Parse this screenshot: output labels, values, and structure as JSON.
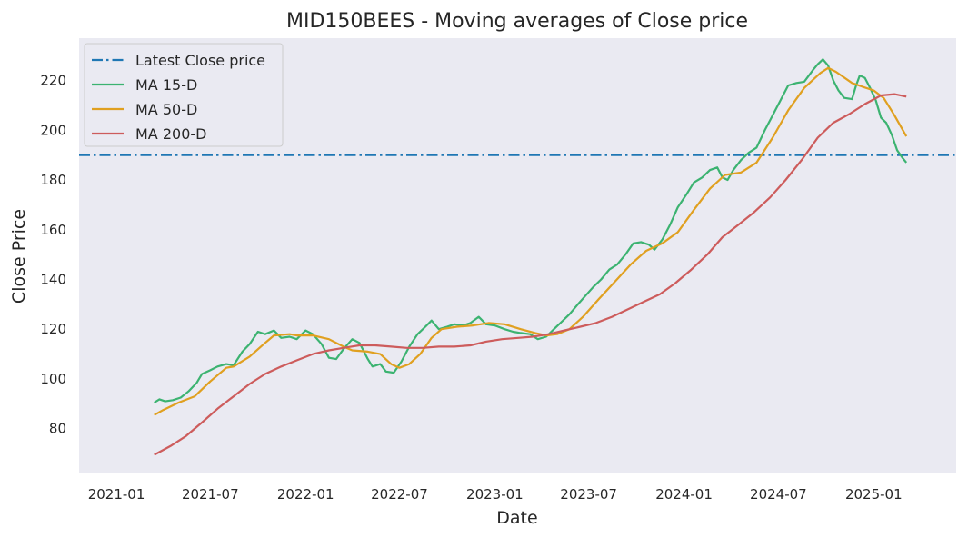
{
  "chart_data": {
    "type": "line",
    "title": "MID150BEES - Moving averages of Close price",
    "xlabel": "Date",
    "ylabel": "Close Price",
    "grid": false,
    "legend_position": "top-left",
    "x_ticks": [
      "2021-01",
      "2021-07",
      "2022-01",
      "2022-07",
      "2023-01",
      "2023-07",
      "2024-01",
      "2024-07",
      "2025-01"
    ],
    "x_range": [
      "2020-10-21",
      "2025-06-09"
    ],
    "y_ticks": [
      80,
      100,
      120,
      140,
      160,
      180,
      200,
      220
    ],
    "ylim": [
      62,
      237
    ],
    "reference_line": {
      "name": "Latest Close price",
      "value": 190,
      "color": "#1f77b4",
      "style": "dashdot"
    },
    "series": [
      {
        "name": "MA 15-D",
        "color": "#3cb371",
        "points": [
          [
            "2021-03-15",
            90.5
          ],
          [
            "2021-03-25",
            91.8
          ],
          [
            "2021-04-05",
            91.0
          ],
          [
            "2021-04-20",
            91.5
          ],
          [
            "2021-05-05",
            92.5
          ],
          [
            "2021-05-20",
            95.0
          ],
          [
            "2021-06-05",
            98.5
          ],
          [
            "2021-06-15",
            102.0
          ],
          [
            "2021-07-01",
            103.5
          ],
          [
            "2021-07-15",
            105.0
          ],
          [
            "2021-08-01",
            106.0
          ],
          [
            "2021-08-15",
            105.5
          ],
          [
            "2021-09-01",
            111.0
          ],
          [
            "2021-09-15",
            114.0
          ],
          [
            "2021-10-01",
            119.0
          ],
          [
            "2021-10-15",
            118.0
          ],
          [
            "2021-11-01",
            119.5
          ],
          [
            "2021-11-15",
            116.5
          ],
          [
            "2021-12-01",
            117.0
          ],
          [
            "2021-12-15",
            116.0
          ],
          [
            "2022-01-01",
            119.5
          ],
          [
            "2022-01-15",
            118.0
          ],
          [
            "2022-02-01",
            114.0
          ],
          [
            "2022-02-15",
            108.5
          ],
          [
            "2022-03-01",
            108.0
          ],
          [
            "2022-03-15",
            112.0
          ],
          [
            "2022-04-01",
            116.0
          ],
          [
            "2022-04-15",
            114.5
          ],
          [
            "2022-05-01",
            108.0
          ],
          [
            "2022-05-10",
            105.0
          ],
          [
            "2022-05-25",
            106.0
          ],
          [
            "2022-06-05",
            103.0
          ],
          [
            "2022-06-20",
            102.5
          ],
          [
            "2022-07-05",
            107.0
          ],
          [
            "2022-07-20",
            113.0
          ],
          [
            "2022-08-05",
            118.0
          ],
          [
            "2022-08-20",
            121.0
          ],
          [
            "2022-09-01",
            123.5
          ],
          [
            "2022-09-15",
            120.0
          ],
          [
            "2022-10-01",
            121.0
          ],
          [
            "2022-10-15",
            122.0
          ],
          [
            "2022-11-01",
            121.5
          ],
          [
            "2022-11-15",
            122.5
          ],
          [
            "2022-12-01",
            125.0
          ],
          [
            "2022-12-15",
            122.0
          ],
          [
            "2023-01-01",
            121.5
          ],
          [
            "2023-01-20",
            120.0
          ],
          [
            "2023-02-05",
            119.0
          ],
          [
            "2023-02-20",
            118.5
          ],
          [
            "2023-03-10",
            118.0
          ],
          [
            "2023-03-25",
            116.0
          ],
          [
            "2023-04-10",
            117.0
          ],
          [
            "2023-04-25",
            120.0
          ],
          [
            "2023-05-10",
            123.0
          ],
          [
            "2023-05-25",
            126.0
          ],
          [
            "2023-06-10",
            130.0
          ],
          [
            "2023-06-25",
            133.5
          ],
          [
            "2023-07-10",
            137.0
          ],
          [
            "2023-07-25",
            140.0
          ],
          [
            "2023-08-10",
            144.0
          ],
          [
            "2023-08-25",
            146.0
          ],
          [
            "2023-09-10",
            150.0
          ],
          [
            "2023-09-25",
            154.5
          ],
          [
            "2023-10-10",
            155.0
          ],
          [
            "2023-10-25",
            154.0
          ],
          [
            "2023-11-05",
            152.0
          ],
          [
            "2023-11-20",
            156.0
          ],
          [
            "2023-12-05",
            162.0
          ],
          [
            "2023-12-20",
            169.0
          ],
          [
            "2024-01-05",
            174.0
          ],
          [
            "2024-01-20",
            179.0
          ],
          [
            "2024-02-05",
            181.0
          ],
          [
            "2024-02-20",
            184.0
          ],
          [
            "2024-03-05",
            185.0
          ],
          [
            "2024-03-15",
            181.0
          ],
          [
            "2024-03-25",
            180.0
          ],
          [
            "2024-04-05",
            184.0
          ],
          [
            "2024-04-20",
            188.0
          ],
          [
            "2024-05-05",
            191.0
          ],
          [
            "2024-05-20",
            193.0
          ],
          [
            "2024-06-05",
            200.0
          ],
          [
            "2024-06-20",
            206.0
          ],
          [
            "2024-07-05",
            212.0
          ],
          [
            "2024-07-20",
            218.0
          ],
          [
            "2024-08-05",
            219.0
          ],
          [
            "2024-08-20",
            219.5
          ],
          [
            "2024-09-05",
            224.0
          ],
          [
            "2024-09-15",
            226.5
          ],
          [
            "2024-09-25",
            228.5
          ],
          [
            "2024-10-05",
            226.0
          ],
          [
            "2024-10-15",
            220.0
          ],
          [
            "2024-10-25",
            216.0
          ],
          [
            "2024-11-05",
            213.0
          ],
          [
            "2024-11-20",
            212.5
          ],
          [
            "2024-11-28",
            218.0
          ],
          [
            "2024-12-05",
            222.0
          ],
          [
            "2024-12-15",
            221.0
          ],
          [
            "2024-12-25",
            217.0
          ],
          [
            "2025-01-05",
            212.0
          ],
          [
            "2025-01-15",
            205.0
          ],
          [
            "2025-01-25",
            203.0
          ],
          [
            "2025-02-05",
            198.0
          ],
          [
            "2025-02-15",
            192.0
          ],
          [
            "2025-02-25",
            189.0
          ],
          [
            "2025-03-05",
            187.0
          ]
        ]
      },
      {
        "name": "MA 50-D",
        "color": "#e0a020",
        "points": [
          [
            "2021-03-15",
            85.5
          ],
          [
            "2021-04-01",
            87.5
          ],
          [
            "2021-05-01",
            90.5
          ],
          [
            "2021-06-01",
            93.0
          ],
          [
            "2021-07-01",
            99.0
          ],
          [
            "2021-08-01",
            104.5
          ],
          [
            "2021-08-15",
            105.0
          ],
          [
            "2021-09-15",
            109.0
          ],
          [
            "2021-10-15",
            114.5
          ],
          [
            "2021-11-01",
            117.5
          ],
          [
            "2021-12-01",
            118.0
          ],
          [
            "2021-12-15",
            117.5
          ],
          [
            "2022-01-15",
            117.5
          ],
          [
            "2022-02-15",
            116.0
          ],
          [
            "2022-03-15",
            113.0
          ],
          [
            "2022-04-01",
            111.5
          ],
          [
            "2022-05-01",
            111.0
          ],
          [
            "2022-05-25",
            110.0
          ],
          [
            "2022-06-15",
            106.0
          ],
          [
            "2022-07-01",
            104.5
          ],
          [
            "2022-07-20",
            106.0
          ],
          [
            "2022-08-10",
            110.0
          ],
          [
            "2022-09-01",
            116.5
          ],
          [
            "2022-09-20",
            120.0
          ],
          [
            "2022-10-20",
            121.0
          ],
          [
            "2022-11-20",
            121.5
          ],
          [
            "2022-12-20",
            122.5
          ],
          [
            "2023-01-20",
            122.0
          ],
          [
            "2023-02-20",
            120.0
          ],
          [
            "2023-03-20",
            118.5
          ],
          [
            "2023-04-10",
            117.5
          ],
          [
            "2023-05-01",
            118.0
          ],
          [
            "2023-05-25",
            120.0
          ],
          [
            "2023-06-20",
            125.0
          ],
          [
            "2023-07-20",
            132.0
          ],
          [
            "2023-08-20",
            139.0
          ],
          [
            "2023-09-20",
            146.0
          ],
          [
            "2023-10-20",
            151.5
          ],
          [
            "2023-11-20",
            154.5
          ],
          [
            "2023-12-20",
            159.0
          ],
          [
            "2024-01-20",
            168.0
          ],
          [
            "2024-02-20",
            176.5
          ],
          [
            "2024-03-20",
            182.0
          ],
          [
            "2024-04-20",
            183.0
          ],
          [
            "2024-05-20",
            187.0
          ],
          [
            "2024-06-20",
            197.0
          ],
          [
            "2024-07-20",
            208.0
          ],
          [
            "2024-08-20",
            217.0
          ],
          [
            "2024-09-20",
            223.0
          ],
          [
            "2024-10-05",
            225.0
          ],
          [
            "2024-10-20",
            223.5
          ],
          [
            "2024-11-20",
            219.0
          ],
          [
            "2024-12-10",
            217.5
          ],
          [
            "2025-01-01",
            216.0
          ],
          [
            "2025-01-20",
            213.0
          ],
          [
            "2025-02-10",
            206.0
          ],
          [
            "2025-03-05",
            197.5
          ]
        ]
      },
      {
        "name": "MA 200-D",
        "color": "#cd5c5c",
        "points": [
          [
            "2021-03-15",
            69.5
          ],
          [
            "2021-04-15",
            73.0
          ],
          [
            "2021-05-15",
            77.0
          ],
          [
            "2021-06-15",
            82.5
          ],
          [
            "2021-07-15",
            88.0
          ],
          [
            "2021-08-15",
            93.0
          ],
          [
            "2021-09-15",
            98.0
          ],
          [
            "2021-10-15",
            102.0
          ],
          [
            "2021-11-15",
            105.0
          ],
          [
            "2021-12-15",
            107.5
          ],
          [
            "2022-01-15",
            110.0
          ],
          [
            "2022-02-15",
            111.5
          ],
          [
            "2022-03-15",
            112.5
          ],
          [
            "2022-04-15",
            113.5
          ],
          [
            "2022-05-15",
            113.5
          ],
          [
            "2022-06-15",
            113.0
          ],
          [
            "2022-07-15",
            112.5
          ],
          [
            "2022-08-15",
            112.5
          ],
          [
            "2022-09-15",
            113.0
          ],
          [
            "2022-10-15",
            113.0
          ],
          [
            "2022-11-15",
            113.5
          ],
          [
            "2022-12-15",
            115.0
          ],
          [
            "2023-01-15",
            116.0
          ],
          [
            "2023-02-15",
            116.5
          ],
          [
            "2023-03-15",
            117.0
          ],
          [
            "2023-04-15",
            118.0
          ],
          [
            "2023-05-15",
            119.5
          ],
          [
            "2023-06-15",
            121.0
          ],
          [
            "2023-07-15",
            122.5
          ],
          [
            "2023-08-15",
            125.0
          ],
          [
            "2023-09-15",
            128.0
          ],
          [
            "2023-10-15",
            131.0
          ],
          [
            "2023-11-15",
            134.0
          ],
          [
            "2023-12-15",
            138.5
          ],
          [
            "2024-01-15",
            144.0
          ],
          [
            "2024-02-15",
            150.0
          ],
          [
            "2024-03-15",
            157.0
          ],
          [
            "2024-04-15",
            162.0
          ],
          [
            "2024-05-15",
            167.0
          ],
          [
            "2024-06-15",
            173.0
          ],
          [
            "2024-07-15",
            180.0
          ],
          [
            "2024-08-15",
            188.0
          ],
          [
            "2024-09-15",
            197.0
          ],
          [
            "2024-10-15",
            203.0
          ],
          [
            "2024-11-15",
            206.5
          ],
          [
            "2024-12-15",
            210.5
          ],
          [
            "2025-01-15",
            214.0
          ],
          [
            "2025-02-10",
            214.5
          ],
          [
            "2025-03-05",
            213.5
          ]
        ]
      }
    ]
  }
}
